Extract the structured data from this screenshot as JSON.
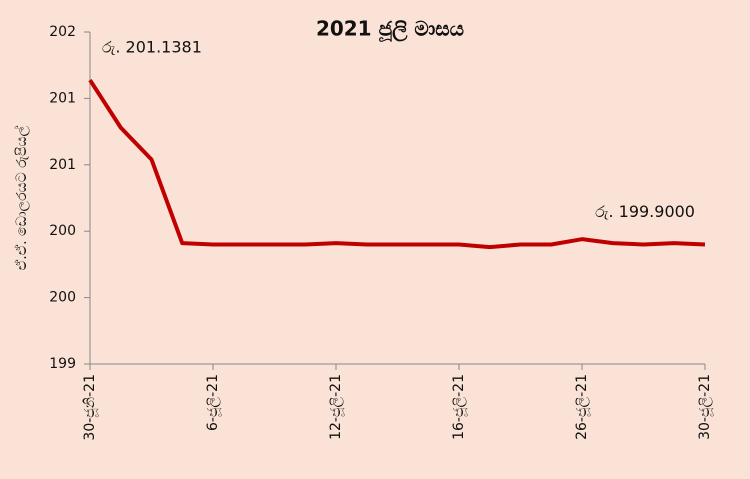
{
  "chart_data": {
    "type": "line",
    "title": "2021  ජූලි මාසය",
    "y_label": "ඒ.ඒ. ඩොලරයට රුපියල්",
    "categories": [
      "30-ජූනි-21",
      null,
      null,
      null,
      "6-ජූලි-21",
      null,
      null,
      null,
      "12-ජූලි-21",
      null,
      null,
      null,
      "16-ජූලි-21",
      null,
      null,
      null,
      "26-ජූලි-21",
      null,
      null,
      null,
      "30-ජූලි-21"
    ],
    "values": [
      201.1381,
      200.78,
      200.54,
      199.91,
      199.9,
      199.9,
      199.9,
      199.9,
      199.91,
      199.9,
      199.9,
      199.9,
      199.9,
      199.88,
      199.9,
      199.9,
      199.94,
      199.91,
      199.9,
      199.91,
      199.9
    ],
    "value_labels": [
      "රු. 201.1381",
      null,
      null,
      null,
      null,
      null,
      null,
      null,
      null,
      null,
      null,
      null,
      null,
      null,
      null,
      null,
      null,
      null,
      null,
      null,
      "රු. 199.9000"
    ],
    "color": "#c00000",
    "ylim": [
      199,
      201.5
    ],
    "yticks": [
      199,
      {
        "value": 199.5,
        "label": "200"
      },
      200,
      {
        "value": 200.5,
        "label": "201"
      },
      201,
      {
        "value": 201.5,
        "label": "202"
      }
    ]
  }
}
